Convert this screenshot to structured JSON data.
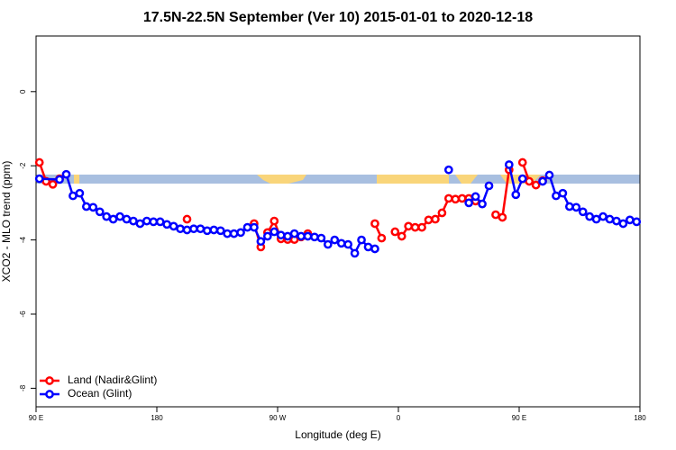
{
  "chart_data": {
    "type": "line",
    "title": "17.5N-22.5N September (Ver 10)   2015-01-01 to 2020-12-18",
    "x_label": "Longitude (deg E)",
    "y_label": "XCO2 - MLO trend (ppm)",
    "xlim": [
      90,
      540
    ],
    "ylim": [
      -8.5,
      1.5
    ],
    "xticks": [
      {
        "value": 90,
        "label": "90 E"
      },
      180,
      {
        "value": 270,
        "label": "90 W"
      },
      {
        "value": 360,
        "label": "0"
      },
      {
        "value": 450,
        "label": "90 E"
      },
      {
        "value": 540,
        "label": "180"
      }
    ],
    "yticks": [
      0,
      -2,
      -4,
      -6,
      -8
    ],
    "legend": "bottom-left",
    "series": [
      {
        "name": "Land (Nadir&Glint)",
        "color": "#ff0000",
        "x": [
          92.5,
          97.5,
          102.5,
          107.5,
          112.5,
          197.5,
          202.5,
          207.5,
          252.5,
          257.5,
          262.5,
          267.5,
          272.5,
          277.5,
          282.5,
          287.5,
          292.5,
          297.5,
          342.5,
          347.5,
          352.5,
          357.5,
          362.5,
          367.5,
          372.5,
          377.5,
          382.5,
          387.5,
          392.5,
          397.5,
          402.5,
          407.5,
          412.5,
          417.5,
          422.5,
          432.5,
          437.5,
          442.5,
          447.5,
          452.5,
          457.5,
          462.5,
          467.5
        ],
        "values": [
          -1.91,
          -2.42,
          -2.5,
          -2.35,
          null,
          null,
          -3.44,
          null,
          -3.56,
          -4.19,
          -3.8,
          -3.49,
          -3.97,
          -3.99,
          -3.99,
          -3.92,
          -3.83,
          null,
          -3.56,
          -3.95,
          null,
          -3.78,
          -3.9,
          -3.63,
          -3.66,
          -3.66,
          -3.46,
          -3.44,
          -3.27,
          -2.88,
          -2.9,
          -2.88,
          -2.88,
          -2.95,
          null,
          -3.32,
          -3.39,
          -2.11,
          null,
          -1.91,
          -2.42,
          -2.52,
          -2.4
        ]
      },
      {
        "name": "Ocean (Glint)",
        "color": "#0000ff",
        "x": [
          92.5,
          107.5,
          112.5,
          117.5,
          122.5,
          127.5,
          132.5,
          137.5,
          142.5,
          147.5,
          152.5,
          157.5,
          162.5,
          167.5,
          172.5,
          177.5,
          182.5,
          187.5,
          192.5,
          197.5,
          202.5,
          207.5,
          212.5,
          217.5,
          222.5,
          227.5,
          232.5,
          237.5,
          242.5,
          247.5,
          252.5,
          257.5,
          262.5,
          267.5,
          272.5,
          277.5,
          282.5,
          287.5,
          292.5,
          297.5,
          302.5,
          307.5,
          312.5,
          317.5,
          322.5,
          327.5,
          332.5,
          337.5,
          342.5,
          347.5,
          397.5,
          402.5,
          412.5,
          417.5,
          422.5,
          427.5,
          432.5,
          442.5,
          447.5,
          452.5,
          457.5,
          467.5,
          472.5,
          477.5,
          482.5,
          487.5,
          492.5,
          497.5,
          502.5,
          507.5,
          512.5,
          517.5,
          522.5,
          527.5,
          532.5,
          537.5
        ],
        "values": [
          -2.35,
          -2.37,
          -2.23,
          -2.81,
          -2.74,
          -3.1,
          -3.12,
          -3.24,
          -3.37,
          -3.44,
          -3.37,
          -3.44,
          -3.49,
          -3.56,
          -3.49,
          -3.51,
          -3.51,
          -3.58,
          -3.63,
          -3.7,
          -3.73,
          -3.7,
          -3.7,
          -3.75,
          -3.73,
          -3.75,
          -3.83,
          -3.83,
          -3.8,
          -3.66,
          -3.66,
          -4.04,
          -3.9,
          -3.78,
          -3.87,
          -3.9,
          -3.83,
          -3.9,
          -3.9,
          -3.92,
          -3.95,
          -4.12,
          -4.0,
          -4.09,
          -4.12,
          -4.36,
          -4.0,
          -4.19,
          -4.24,
          null,
          -2.11,
          null,
          -3.0,
          -2.83,
          -3.03,
          -2.54,
          null,
          -1.97,
          -2.78,
          -2.35,
          null,
          -2.42,
          -2.25,
          -2.81,
          -2.74,
          -3.1,
          -3.12,
          -3.24,
          -3.37,
          -3.44,
          -3.37,
          -3.44,
          -3.49,
          -3.56,
          -3.46,
          -3.51
        ]
      }
    ]
  }
}
